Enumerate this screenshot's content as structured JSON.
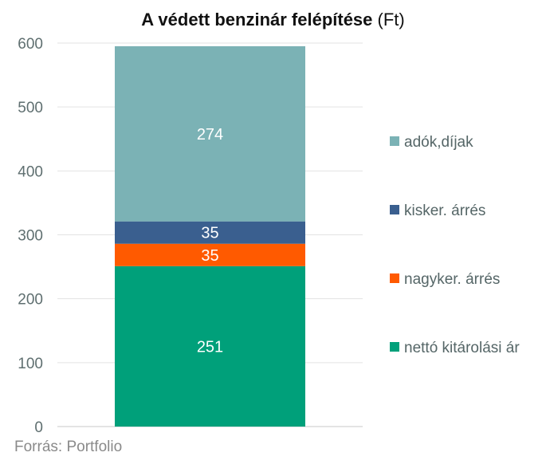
{
  "chart_data": {
    "type": "stacked-bar",
    "title": "A védett benzinár felépítése",
    "title_unit": "(Ft)",
    "categories": [
      ""
    ],
    "series": [
      {
        "name": "nettó kitárolási ár",
        "values": [
          251
        ],
        "color": "#00a07a"
      },
      {
        "name": "nagyker. árrés",
        "values": [
          35
        ],
        "color": "#ff5a00"
      },
      {
        "name": "kisker. árrés",
        "values": [
          35
        ],
        "color": "#3a5f8f"
      },
      {
        "name": "adók,díjak",
        "values": [
          274
        ],
        "color": "#7bb2b5"
      }
    ],
    "ylim": [
      0,
      600
    ],
    "yticks": [
      "0",
      "100",
      "200",
      "300",
      "400",
      "500",
      "600"
    ],
    "grid": true,
    "legend_position": "right",
    "legend_order": [
      "adók,díjak",
      "kisker. árrés",
      "nagyker. árrés",
      "nettó kitárolási ár"
    ],
    "source": "Forrás: Portfolio"
  }
}
